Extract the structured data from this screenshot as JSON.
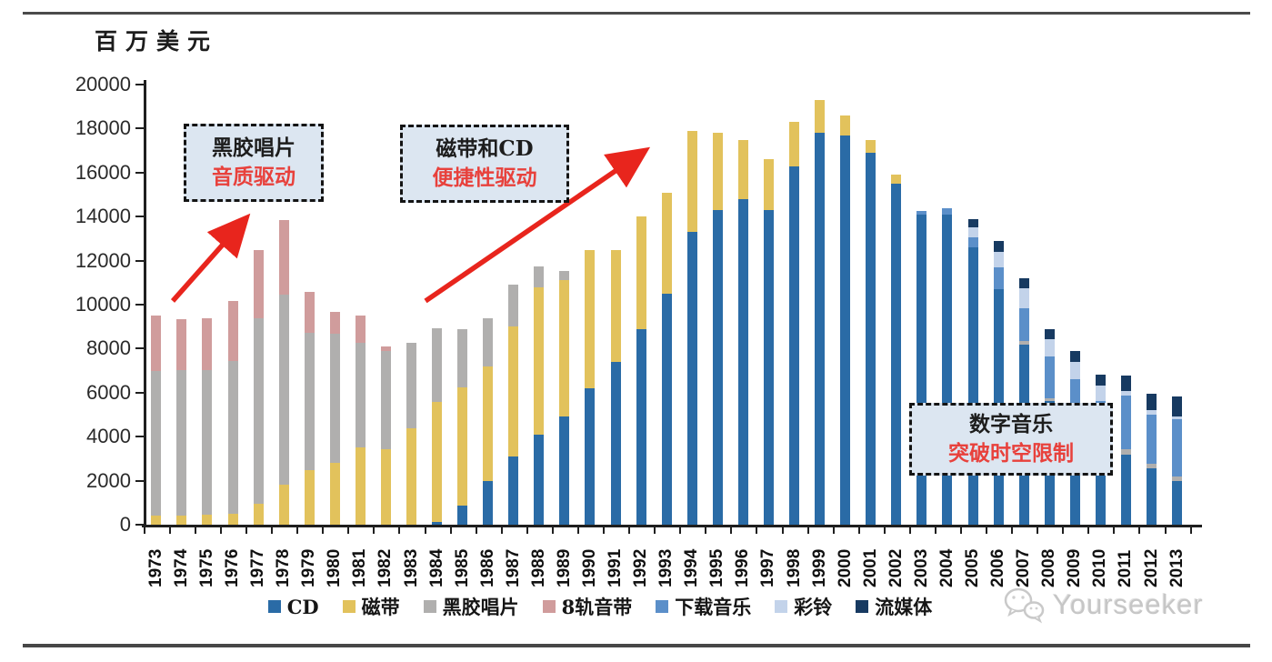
{
  "page": {
    "unit_label": "百万美元",
    "watermark_text": "Yourseeker"
  },
  "colors": {
    "annotation_box_bg": "#dce6f1",
    "annotation_box_border": "#141414",
    "annotation_red_text": "#e8413c",
    "arrow_red": "#e8251d",
    "axis_black": "#1f1f1f",
    "watermark_gray": "#c6c6c6"
  },
  "annotations": [
    {
      "title": "黑胶唱片",
      "subtitle": "音质驱动"
    },
    {
      "title": "磁带和CD",
      "subtitle": "便捷性驱动"
    },
    {
      "title": "数字音乐",
      "subtitle": "突破时空限制"
    }
  ],
  "chart_data": {
    "type": "bar",
    "stacked": true,
    "title": "",
    "ylabel": "百万美元",
    "xlabel": "",
    "ylim": [
      0,
      20000
    ],
    "ytick_step": 2000,
    "ytick_labels": [
      "0",
      "2000",
      "4000",
      "6000",
      "8000",
      "10000",
      "12000",
      "14000",
      "16000",
      "18000",
      "20000"
    ],
    "grid": false,
    "legend_position": "bottom",
    "categories": [
      "1973",
      "1974",
      "1975",
      "1976",
      "1977",
      "1978",
      "1979",
      "1980",
      "1981",
      "1982",
      "1983",
      "1984",
      "1985",
      "1986",
      "1987",
      "1988",
      "1989",
      "1990",
      "1991",
      "1992",
      "1993",
      "1994",
      "1995",
      "1996",
      "1997",
      "1998",
      "1999",
      "2000",
      "2001",
      "2002",
      "2003",
      "2004",
      "2005",
      "2006",
      "2007",
      "2008",
      "2009",
      "2010",
      "2011",
      "2012",
      "2013"
    ],
    "series": [
      {
        "name": "CD",
        "slug": "cd",
        "color": "#2a6ba6",
        "values": [
          0,
          0,
          0,
          0,
          0,
          0,
          0,
          0,
          0,
          0,
          0,
          130,
          880,
          1970,
          3100,
          4100,
          4900,
          6200,
          7400,
          8900,
          10500,
          13300,
          14300,
          14800,
          14300,
          16300,
          17800,
          17700,
          16900,
          15500,
          14100,
          14100,
          12600,
          10700,
          8200,
          5600,
          4400,
          3550,
          3200,
          2550,
          2000
        ]
      },
      {
        "name": "磁带",
        "slug": "cassette",
        "color": "#e2c25c",
        "values": [
          400,
          420,
          450,
          500,
          950,
          1800,
          2500,
          2800,
          3500,
          3450,
          4400,
          5430,
          5350,
          5220,
          5900,
          6700,
          6200,
          6300,
          5100,
          5100,
          4600,
          4600,
          3500,
          2700,
          2300,
          2000,
          1500,
          900,
          600,
          400,
          0,
          0,
          0,
          0,
          0,
          0,
          0,
          0,
          0,
          0,
          0
        ]
      },
      {
        "name": "黑胶唱片",
        "slug": "vinyl",
        "color": "#b0afae",
        "values": [
          6600,
          6600,
          6580,
          6950,
          8450,
          8650,
          6200,
          5860,
          4750,
          4450,
          3850,
          3350,
          2640,
          2210,
          1900,
          950,
          450,
          0,
          0,
          0,
          0,
          0,
          0,
          0,
          0,
          0,
          0,
          0,
          0,
          0,
          0,
          0,
          0,
          0,
          150,
          150,
          130,
          130,
          210,
          210,
          210
        ]
      },
      {
        "name": "8轨音带",
        "slug": "8track",
        "color": "#d09c9c",
        "values": [
          2500,
          2300,
          2370,
          2700,
          3100,
          3400,
          1880,
          1000,
          1250,
          200,
          0,
          0,
          0,
          0,
          0,
          0,
          0,
          0,
          0,
          0,
          0,
          0,
          0,
          0,
          0,
          0,
          0,
          0,
          0,
          0,
          0,
          0,
          0,
          0,
          0,
          0,
          0,
          0,
          0,
          0,
          0
        ]
      },
      {
        "name": "下载音乐",
        "slug": "download",
        "color": "#5b8fc9",
        "values": [
          0,
          0,
          0,
          0,
          0,
          0,
          0,
          0,
          0,
          0,
          0,
          0,
          0,
          0,
          0,
          0,
          0,
          0,
          0,
          0,
          0,
          0,
          0,
          0,
          0,
          0,
          0,
          0,
          0,
          0,
          150,
          300,
          450,
          1000,
          1500,
          1900,
          2100,
          1950,
          2440,
          2230,
          2600
        ]
      },
      {
        "name": "彩铃",
        "slug": "ringtone",
        "color": "#c3d3ea",
        "values": [
          0,
          0,
          0,
          0,
          0,
          0,
          0,
          0,
          0,
          0,
          0,
          0,
          0,
          0,
          0,
          0,
          0,
          0,
          0,
          0,
          0,
          0,
          0,
          0,
          0,
          0,
          0,
          0,
          0,
          0,
          0,
          0,
          450,
          700,
          900,
          770,
          760,
          700,
          210,
          210,
          120
        ]
      },
      {
        "name": "流媒体",
        "slug": "streaming",
        "color": "#173a61",
        "values": [
          0,
          0,
          0,
          0,
          0,
          0,
          0,
          0,
          0,
          0,
          0,
          0,
          0,
          0,
          0,
          0,
          0,
          0,
          0,
          0,
          0,
          0,
          0,
          0,
          0,
          0,
          0,
          0,
          0,
          0,
          0,
          0,
          400,
          500,
          450,
          480,
          490,
          500,
          700,
          770,
          910
        ]
      }
    ]
  }
}
